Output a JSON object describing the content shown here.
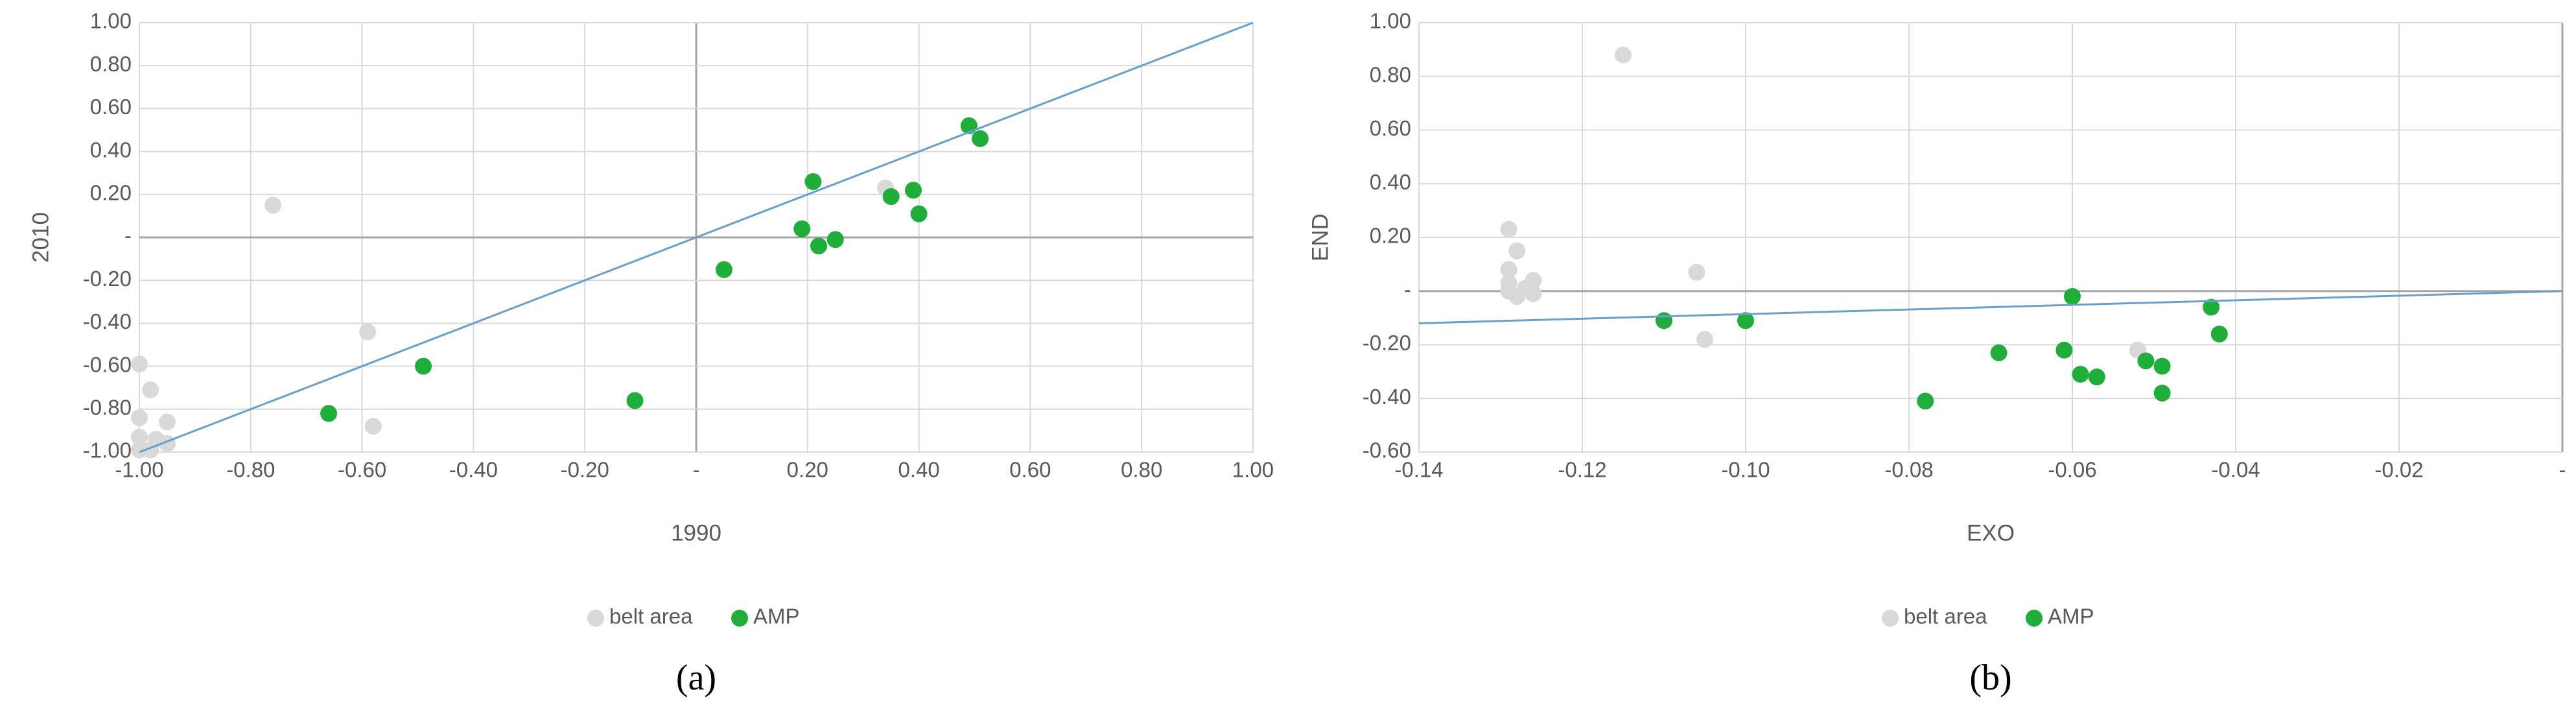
{
  "chart_data": [
    {
      "type": "scatter",
      "caption": "(a)",
      "x_label": "1990",
      "y_label": "2010",
      "grid": true,
      "legend": "bottom",
      "xlim": [
        -1,
        1
      ],
      "ylim": [
        -1,
        1
      ],
      "xticks": [
        {
          "value": -1,
          "label": "-1.00"
        },
        {
          "value": -0.8,
          "label": "-0.80"
        },
        {
          "value": -0.6,
          "label": "-0.60"
        },
        {
          "value": -0.4,
          "label": "-0.40"
        },
        {
          "value": -0.2,
          "label": "-0.20"
        },
        {
          "value": 0,
          "label": "-"
        },
        {
          "value": 0.2,
          "label": "0.20"
        },
        {
          "value": 0.4,
          "label": "0.40"
        },
        {
          "value": 0.6,
          "label": "0.60"
        },
        {
          "value": 0.8,
          "label": "0.80"
        },
        {
          "value": 1,
          "label": "1.00"
        }
      ],
      "yticks": [
        {
          "value": -1,
          "label": "-1.00"
        },
        {
          "value": -0.8,
          "label": "-0.80"
        },
        {
          "value": -0.6,
          "label": "-0.60"
        },
        {
          "value": -0.4,
          "label": "-0.40"
        },
        {
          "value": -0.2,
          "label": "-0.20"
        },
        {
          "value": 0,
          "label": "-"
        },
        {
          "value": 0.2,
          "label": "0.20"
        },
        {
          "value": 0.4,
          "label": "0.40"
        },
        {
          "value": 0.6,
          "label": "0.60"
        },
        {
          "value": 0.8,
          "label": "0.80"
        },
        {
          "value": 1,
          "label": "1.00"
        }
      ],
      "series": [
        {
          "name": "belt area",
          "color": "#d9d9d9",
          "x": [
            -1.0,
            -0.98,
            -1.0,
            -1.0,
            -0.97,
            -0.95,
            -0.95,
            -0.98,
            -1.0,
            -0.76,
            -0.59,
            -0.58,
            0.34
          ],
          "y": [
            -0.59,
            -0.71,
            -0.84,
            -0.93,
            -0.94,
            -0.86,
            -0.96,
            -0.99,
            -0.99,
            0.15,
            -0.44,
            -0.88,
            0.23
          ]
        },
        {
          "name": "AMP",
          "color": "#1fae3a",
          "x": [
            -0.66,
            -0.49,
            -0.11,
            0.05,
            0.19,
            0.21,
            0.22,
            0.25,
            0.35,
            0.39,
            0.4,
            0.49,
            0.51
          ],
          "y": [
            -0.82,
            -0.6,
            -0.76,
            -0.15,
            0.04,
            0.26,
            -0.04,
            -0.01,
            0.19,
            0.22,
            0.11,
            0.52,
            0.46
          ]
        }
      ],
      "trendline": {
        "color": "#6a9fcb",
        "x": [
          -1,
          1
        ],
        "y": [
          -1,
          1
        ]
      }
    },
    {
      "type": "scatter",
      "caption": "(b)",
      "x_label": "EXO",
      "y_label": "END",
      "grid": true,
      "legend": "bottom",
      "xlim": [
        -0.14,
        0
      ],
      "ylim": [
        -0.6,
        1
      ],
      "xticks": [
        {
          "value": -0.14,
          "label": "-0.14"
        },
        {
          "value": -0.12,
          "label": "-0.12"
        },
        {
          "value": -0.1,
          "label": "-0.10"
        },
        {
          "value": -0.08,
          "label": "-0.08"
        },
        {
          "value": -0.06,
          "label": "-0.06"
        },
        {
          "value": -0.04,
          "label": "-0.04"
        },
        {
          "value": -0.02,
          "label": "-0.02"
        },
        {
          "value": 0,
          "label": "-"
        }
      ],
      "yticks": [
        {
          "value": -0.6,
          "label": "-0.60"
        },
        {
          "value": -0.4,
          "label": "-0.40"
        },
        {
          "value": -0.2,
          "label": "-0.20"
        },
        {
          "value": 0,
          "label": "-"
        },
        {
          "value": 0.2,
          "label": "0.20"
        },
        {
          "value": 0.4,
          "label": "0.40"
        },
        {
          "value": 0.6,
          "label": "0.60"
        },
        {
          "value": 0.8,
          "label": "0.80"
        },
        {
          "value": 1,
          "label": "1.00"
        }
      ],
      "series": [
        {
          "name": "belt area",
          "color": "#d9d9d9",
          "x": [
            -0.129,
            -0.128,
            -0.129,
            -0.129,
            -0.129,
            -0.128,
            -0.127,
            -0.126,
            -0.126,
            -0.115,
            -0.106,
            -0.105,
            -0.052
          ],
          "y": [
            0.23,
            0.15,
            0.08,
            0.03,
            0.0,
            -0.02,
            0.01,
            0.04,
            -0.01,
            0.88,
            0.07,
            -0.18,
            -0.22
          ]
        },
        {
          "name": "AMP",
          "color": "#1fae3a",
          "x": [
            -0.11,
            -0.1,
            -0.06,
            -0.078,
            -0.069,
            -0.061,
            -0.059,
            -0.057,
            -0.051,
            -0.049,
            -0.049,
            -0.043,
            -0.042
          ],
          "y": [
            -0.11,
            -0.11,
            -0.02,
            -0.41,
            -0.23,
            -0.22,
            -0.31,
            -0.32,
            -0.26,
            -0.28,
            -0.38,
            -0.06,
            -0.16
          ]
        }
      ],
      "trendline": {
        "color": "#6a9fcb",
        "x": [
          -0.14,
          0
        ],
        "y": [
          -0.12,
          0
        ]
      }
    }
  ]
}
